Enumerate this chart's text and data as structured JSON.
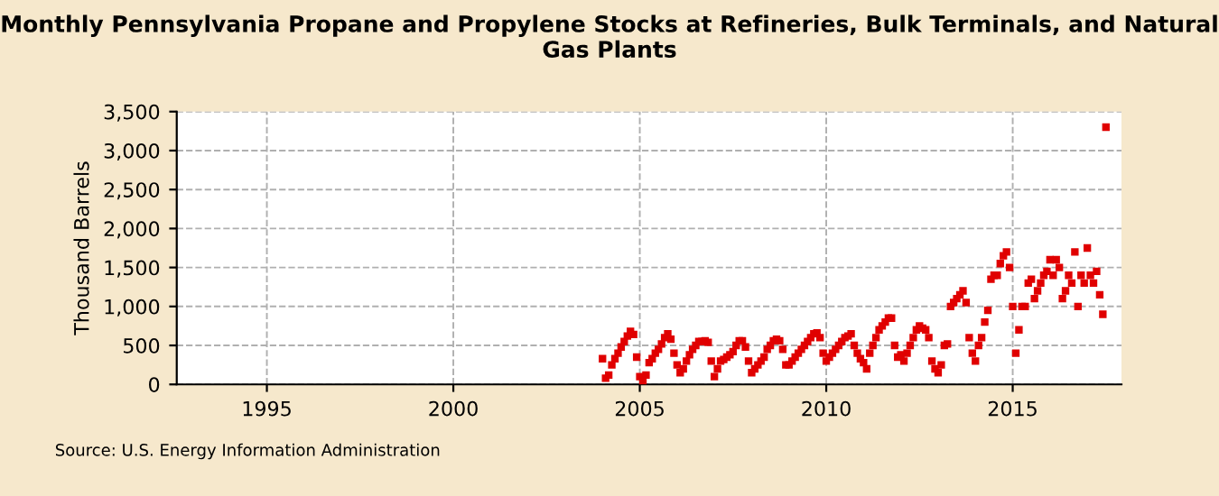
{
  "chart_data": {
    "type": "scatter",
    "title": "Monthly Pennsylvania Propane and Propylene Stocks at Refineries, Bulk Terminals, and Natural Gas Plants",
    "ylabel": "Thousand Barrels",
    "annotations": [
      "Source: U.S. Energy Information Administration"
    ],
    "x": [
      "2004-01",
      "2004-02",
      "2004-03",
      "2004-04",
      "2004-05",
      "2004-06",
      "2004-07",
      "2004-08",
      "2004-09",
      "2004-10",
      "2004-11",
      "2004-12",
      "2005-01",
      "2005-02",
      "2005-03",
      "2005-04",
      "2005-05",
      "2005-06",
      "2005-07",
      "2005-08",
      "2005-09",
      "2005-10",
      "2005-11",
      "2005-12",
      "2006-01",
      "2006-02",
      "2006-03",
      "2006-04",
      "2006-05",
      "2006-06",
      "2006-07",
      "2006-08",
      "2006-09",
      "2006-10",
      "2006-11",
      "2006-12",
      "2007-01",
      "2007-02",
      "2007-03",
      "2007-04",
      "2007-05",
      "2007-06",
      "2007-07",
      "2007-08",
      "2007-09",
      "2007-10",
      "2007-11",
      "2007-12",
      "2008-01",
      "2008-02",
      "2008-03",
      "2008-04",
      "2008-05",
      "2008-06",
      "2008-07",
      "2008-08",
      "2008-09",
      "2008-10",
      "2008-11",
      "2008-12",
      "2009-01",
      "2009-02",
      "2009-03",
      "2009-04",
      "2009-05",
      "2009-06",
      "2009-07",
      "2009-08",
      "2009-09",
      "2009-10",
      "2009-11",
      "2009-12",
      "2010-01",
      "2010-02",
      "2010-03",
      "2010-04",
      "2010-05",
      "2010-06",
      "2010-07",
      "2010-08",
      "2010-09",
      "2010-10",
      "2010-11",
      "2010-12",
      "2011-01",
      "2011-02",
      "2011-03",
      "2011-04",
      "2011-05",
      "2011-06",
      "2011-07",
      "2011-08",
      "2011-09",
      "2011-10",
      "2011-11",
      "2011-12",
      "2012-01",
      "2012-02",
      "2012-03",
      "2012-04",
      "2012-05",
      "2012-06",
      "2012-07",
      "2012-08",
      "2012-09",
      "2012-10",
      "2012-11",
      "2012-12",
      "2013-01",
      "2013-02",
      "2013-03",
      "2013-04",
      "2013-05",
      "2013-06",
      "2013-07",
      "2013-08",
      "2013-09",
      "2013-10",
      "2013-11",
      "2013-12",
      "2014-01",
      "2014-02",
      "2014-03",
      "2014-04",
      "2014-05",
      "2014-06",
      "2014-07",
      "2014-08",
      "2014-09",
      "2014-10",
      "2014-11",
      "2014-12",
      "2015-01",
      "2015-02",
      "2015-03",
      "2015-04",
      "2015-05",
      "2015-06",
      "2015-07",
      "2015-08",
      "2015-09",
      "2015-10",
      "2015-11",
      "2015-12",
      "2016-01",
      "2016-02",
      "2016-03",
      "2016-04",
      "2016-05",
      "2016-06",
      "2016-07",
      "2016-08",
      "2016-09",
      "2016-10",
      "2016-11",
      "2016-12",
      "2017-01",
      "2017-02",
      "2017-03",
      "2017-04",
      "2017-05",
      "2017-06",
      "2017-07"
    ],
    "series": [
      {
        "color": "#e00000",
        "values": [
          330,
          80,
          120,
          250,
          330,
          400,
          480,
          550,
          620,
          680,
          640,
          350,
          100,
          30,
          120,
          280,
          330,
          400,
          450,
          520,
          600,
          650,
          580,
          400,
          250,
          150,
          200,
          300,
          380,
          450,
          500,
          550,
          550,
          560,
          540,
          300,
          100,
          200,
          300,
          320,
          350,
          380,
          420,
          500,
          560,
          560,
          480,
          300,
          150,
          200,
          250,
          300,
          350,
          450,
          500,
          560,
          580,
          560,
          450,
          250,
          250,
          300,
          350,
          400,
          450,
          500,
          550,
          600,
          650,
          660,
          600,
          400,
          300,
          350,
          400,
          450,
          500,
          550,
          600,
          620,
          650,
          500,
          400,
          330,
          280,
          200,
          400,
          500,
          600,
          700,
          750,
          800,
          850,
          850,
          500,
          350,
          380,
          300,
          400,
          500,
          600,
          700,
          750,
          720,
          700,
          600,
          300,
          200,
          150,
          250,
          500,
          520,
          1000,
          1050,
          1100,
          1150,
          1200,
          1050,
          600,
          400,
          300,
          500,
          600,
          800,
          950,
          1350,
          1400,
          1400,
          1550,
          1650,
          1700,
          1500,
          1000,
          400,
          700,
          1000,
          1000,
          1300,
          1350,
          1100,
          1200,
          1300,
          1400,
          1450,
          1600,
          1400,
          1600,
          1500,
          1100,
          1200,
          1400,
          1300,
          1700,
          1000,
          1400,
          1300,
          1750,
          1400,
          1300,
          1450,
          1150,
          900,
          3300
        ]
      }
    ],
    "xlim": [
      "1992-08",
      "2017-12"
    ],
    "xticks": [
      "1995",
      "2000",
      "2005",
      "2010",
      "2015"
    ],
    "ylim": [
      0,
      3500
    ],
    "yticks": [
      {
        "value": 0,
        "label": "0"
      },
      {
        "value": 500,
        "label": "500"
      },
      {
        "value": 1000,
        "label": "1,000"
      },
      {
        "value": 1500,
        "label": "1,500"
      },
      {
        "value": 2000,
        "label": "2,000"
      },
      {
        "value": 2500,
        "label": "2,500"
      },
      {
        "value": 3000,
        "label": "3,000"
      },
      {
        "value": 3500,
        "label": "3,500"
      }
    ],
    "grid": true,
    "marker": "square"
  }
}
